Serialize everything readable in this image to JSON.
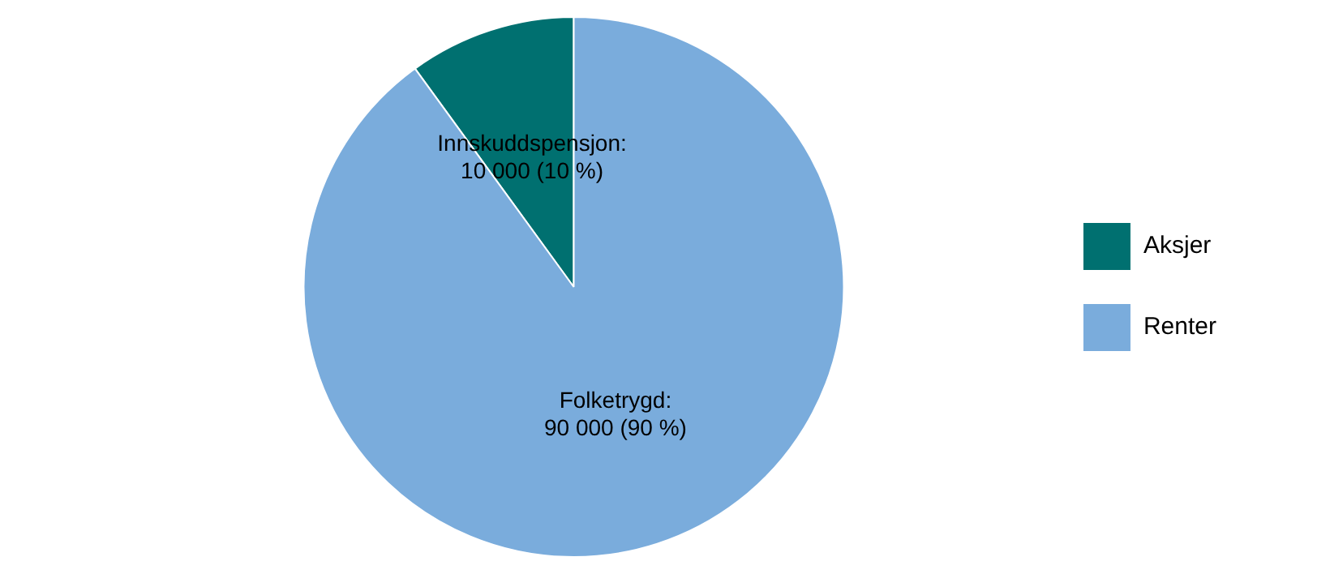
{
  "chart_data": {
    "type": "pie",
    "categories": [
      "Aksjer",
      "Renter"
    ],
    "values": [
      10000,
      90000
    ],
    "colors": [
      "#007070",
      "#7aacdc"
    ],
    "value_labels": [
      "Innskuddspensjon:\n10 000 (10 %)",
      "Folketrygd:\n90 000 (90 %)"
    ],
    "legend": "right"
  }
}
